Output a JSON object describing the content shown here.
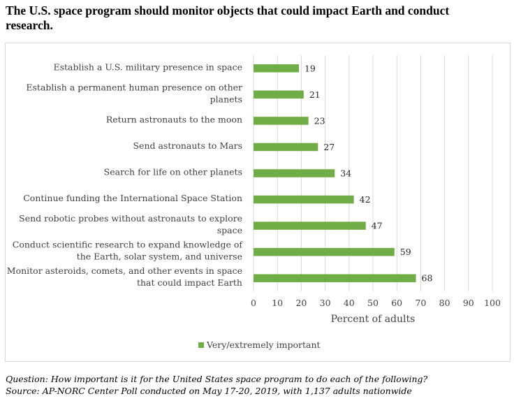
{
  "title": "The U.S. space program should monitor objects that could impact Earth and conduct research.",
  "footnote": {
    "question": "Question: How important is it for the United States space program to do each of the following?",
    "source": "Source: AP-NORC Center Poll conducted on May 17-20, 2019, with 1,137 adults nationwide"
  },
  "colors": {
    "bar": "#70ad47",
    "grid": "#d9d9d9"
  },
  "chart_data": {
    "type": "bar",
    "orientation": "horizontal",
    "categories": [
      [
        "Establish a U.S. military presence in space"
      ],
      [
        "Establish a permanent human presence on other",
        "planets"
      ],
      [
        "Return astronauts to the moon"
      ],
      [
        "Send astronauts to Mars"
      ],
      [
        "Search for life on other planets"
      ],
      [
        "Continue funding the International Space Station"
      ],
      [
        "Send robotic probes without astronauts to explore",
        "space"
      ],
      [
        "Conduct scientific research to expand knowledge of",
        "the Earth, solar system, and universe"
      ],
      [
        "Monitor asteroids, comets, and other events in space",
        "that could impact Earth"
      ]
    ],
    "series": [
      {
        "name": "Very/extremely important",
        "values": [
          19,
          21,
          23,
          27,
          34,
          42,
          47,
          59,
          68
        ]
      }
    ],
    "xlim": [
      0,
      100
    ],
    "xticks": [
      0,
      10,
      20,
      30,
      40,
      50,
      60,
      70,
      80,
      90,
      100
    ],
    "xlabel": "Percent of adults",
    "ylabel": "",
    "grid": true,
    "legend_position": "bottom-center"
  }
}
